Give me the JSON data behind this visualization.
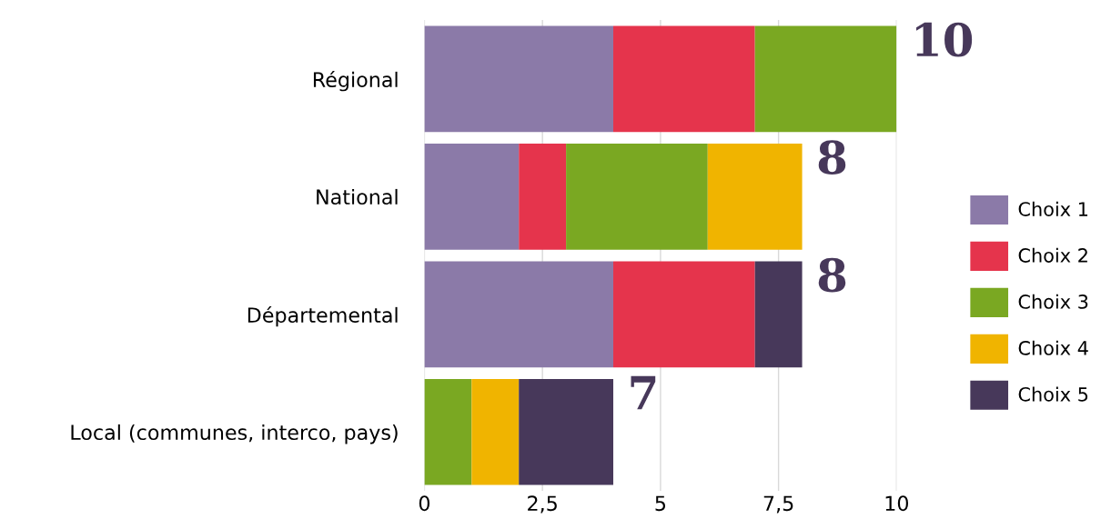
{
  "chart_data": {
    "type": "bar",
    "orientation": "horizontal",
    "stacked": true,
    "categories": [
      "Régional",
      "National",
      "Départemental",
      "Local (communes, interco, pays)"
    ],
    "series": [
      {
        "name": "Choix 1",
        "color": "#8b7aa8",
        "values": [
          4,
          2,
          4,
          0
        ]
      },
      {
        "name": "Choix 2",
        "color": "#e5344c",
        "values": [
          3,
          1,
          3,
          0
        ]
      },
      {
        "name": "Choix 3",
        "color": "#7aa822",
        "values": [
          3,
          3,
          0,
          1
        ]
      },
      {
        "name": "Choix 4",
        "color": "#f0b400",
        "values": [
          0,
          2,
          0,
          1
        ]
      },
      {
        "name": "Choix 5",
        "color": "#47385a",
        "values": [
          0,
          0,
          1,
          2
        ]
      }
    ],
    "xlim": [
      0,
      10
    ],
    "xticks": [
      0,
      {
        "value": 2.5,
        "label": "2,5"
      },
      5,
      {
        "value": 7.5,
        "label": "7,5"
      },
      10
    ],
    "grid": "x",
    "legend": "right",
    "totals": [
      "10",
      "8",
      "8",
      "7"
    ]
  }
}
